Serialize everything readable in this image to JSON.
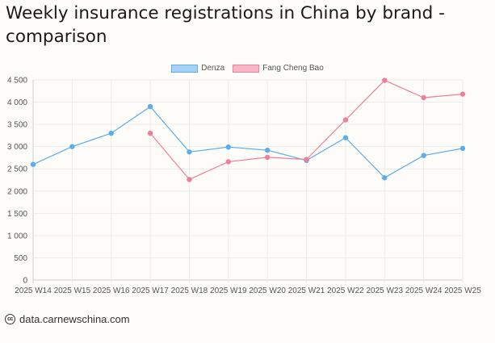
{
  "title": "Weekly insurance registrations in China by brand - comparison",
  "footer": {
    "icon": "cc-icon",
    "icon_text": "cc",
    "source": "data.carnewschina.com"
  },
  "legend": [
    {
      "name": "Denza",
      "color": "#5dadec",
      "fill": "#a7d2f4"
    },
    {
      "name": "Fang Cheng Bao",
      "color": "#ef7f99",
      "fill": "#f8b7c6"
    }
  ],
  "chart_data": {
    "type": "line",
    "title": "Weekly insurance registrations in China by brand - comparison",
    "xlabel": "",
    "ylabel": "",
    "categories": [
      "2025 W14",
      "2025 W15",
      "2025 W16",
      "2025 W17",
      "2025 W18",
      "2025 W19",
      "2025 W20",
      "2025 W21",
      "2025 W22",
      "2025 W23",
      "2025 W24",
      "2025 W25"
    ],
    "ylim": [
      0,
      4500
    ],
    "yticks": [
      0,
      500,
      1000,
      1500,
      2000,
      2500,
      3000,
      3500,
      4000,
      4500
    ],
    "ytick_labels": [
      "0",
      "500",
      "1 000",
      "1 500",
      "2 000",
      "2 500",
      "3 000",
      "3 500",
      "4 000",
      "4 500"
    ],
    "grid": true,
    "legend_position": "top-center",
    "series": [
      {
        "name": "Denza",
        "color": "#5dadec",
        "values": [
          2600,
          3000,
          3300,
          3900,
          2880,
          2990,
          2920,
          2690,
          3200,
          2300,
          2800,
          2960
        ]
      },
      {
        "name": "Fang Cheng Bao",
        "color": "#ef7f99",
        "values": [
          null,
          null,
          null,
          3300,
          2260,
          2660,
          2760,
          2710,
          3600,
          4490,
          4100,
          4180
        ]
      }
    ]
  }
}
